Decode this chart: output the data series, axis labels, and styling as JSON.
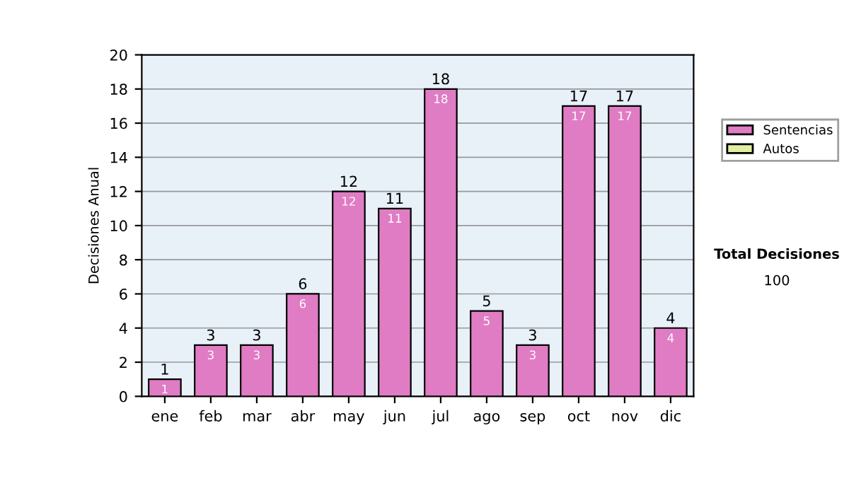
{
  "chart_data": {
    "type": "bar",
    "ylabel": "Decisiones Anual",
    "categories": [
      "ene",
      "feb",
      "mar",
      "abr",
      "may",
      "jun",
      "jul",
      "ago",
      "sep",
      "oct",
      "nov",
      "dic"
    ],
    "series": [
      {
        "name": "Sentencias",
        "color": "#e07cc4",
        "values": [
          1,
          3,
          3,
          6,
          12,
          11,
          18,
          5,
          3,
          17,
          17,
          4
        ],
        "value_labels": [
          "1",
          "3",
          "3",
          "6",
          "12",
          "11",
          "18",
          "5",
          "3",
          "17",
          "17",
          "4"
        ]
      },
      {
        "name": "Autos",
        "color": "#e0f0a0",
        "values": [
          null,
          null,
          null,
          null,
          null,
          null,
          null,
          null,
          null,
          null,
          null,
          null
        ]
      }
    ],
    "stacked": true,
    "totals": [
      "1",
      "3",
      "3",
      "6",
      "12",
      "11",
      "18",
      "5",
      "3",
      "17",
      "17",
      "4"
    ],
    "ylim": [
      0,
      20
    ],
    "yticks": [
      0,
      2,
      4,
      6,
      8,
      10,
      12,
      14,
      16,
      18,
      20
    ],
    "grid": "y",
    "legend": "right",
    "annotations": [
      "Total Decisiones",
      "100"
    ]
  }
}
